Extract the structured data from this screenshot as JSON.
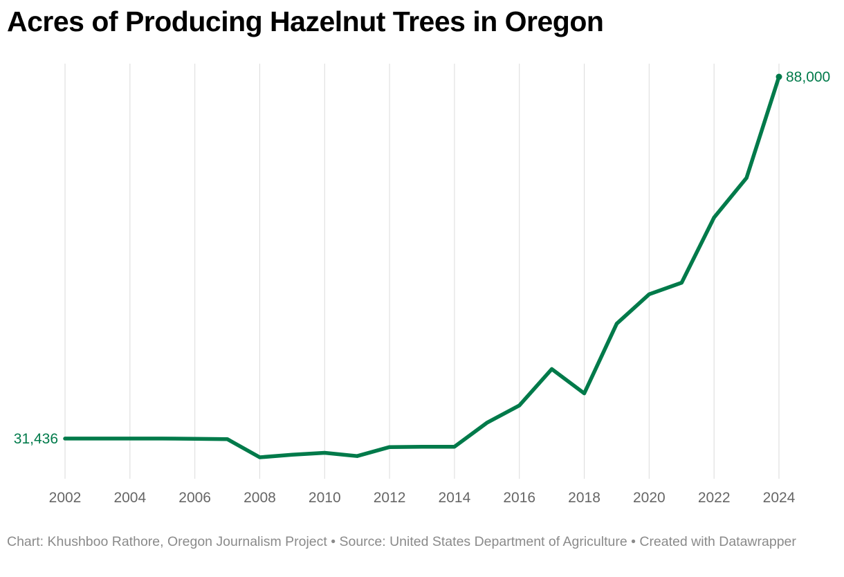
{
  "title": "Acres of Producing Hazelnut Trees in Oregon",
  "footer": "Chart: Khushboo Rathore, Oregon Journalism Project • Source: United States Department of Agriculture • Created with Datawrapper",
  "colors": {
    "line": "#007a4a",
    "grid": "#e0e0e0",
    "tick": "#666666"
  },
  "chart_data": {
    "type": "line",
    "title": "Acres of Producing Hazelnut Trees in Oregon",
    "xlabel": "",
    "ylabel": "",
    "x_ticks": [
      "2002",
      "2004",
      "2006",
      "2008",
      "2010",
      "2012",
      "2014",
      "2016",
      "2018",
      "2020",
      "2022",
      "2024"
    ],
    "xlim": [
      2002,
      2024
    ],
    "grid": "vertical",
    "series": [
      {
        "x": [
          2002,
          2003,
          2004,
          2005,
          2006,
          2007,
          2008,
          2009,
          2010,
          2011,
          2012,
          2013,
          2014,
          2015,
          2016,
          2017,
          2018,
          2019,
          2020,
          2021,
          2022,
          2023,
          2024
        ],
        "values": [
          31436,
          31436,
          31436,
          31436,
          31400,
          31350,
          28500,
          28900,
          29200,
          28700,
          30100,
          30150,
          30150,
          33900,
          36600,
          42300,
          38500,
          49400,
          54000,
          55800,
          66000,
          72200,
          88000
        ]
      }
    ],
    "labels": [
      {
        "x": 2002,
        "text": "31,436",
        "side": "left"
      },
      {
        "x": 2024,
        "text": "88,000",
        "side": "right"
      }
    ]
  }
}
